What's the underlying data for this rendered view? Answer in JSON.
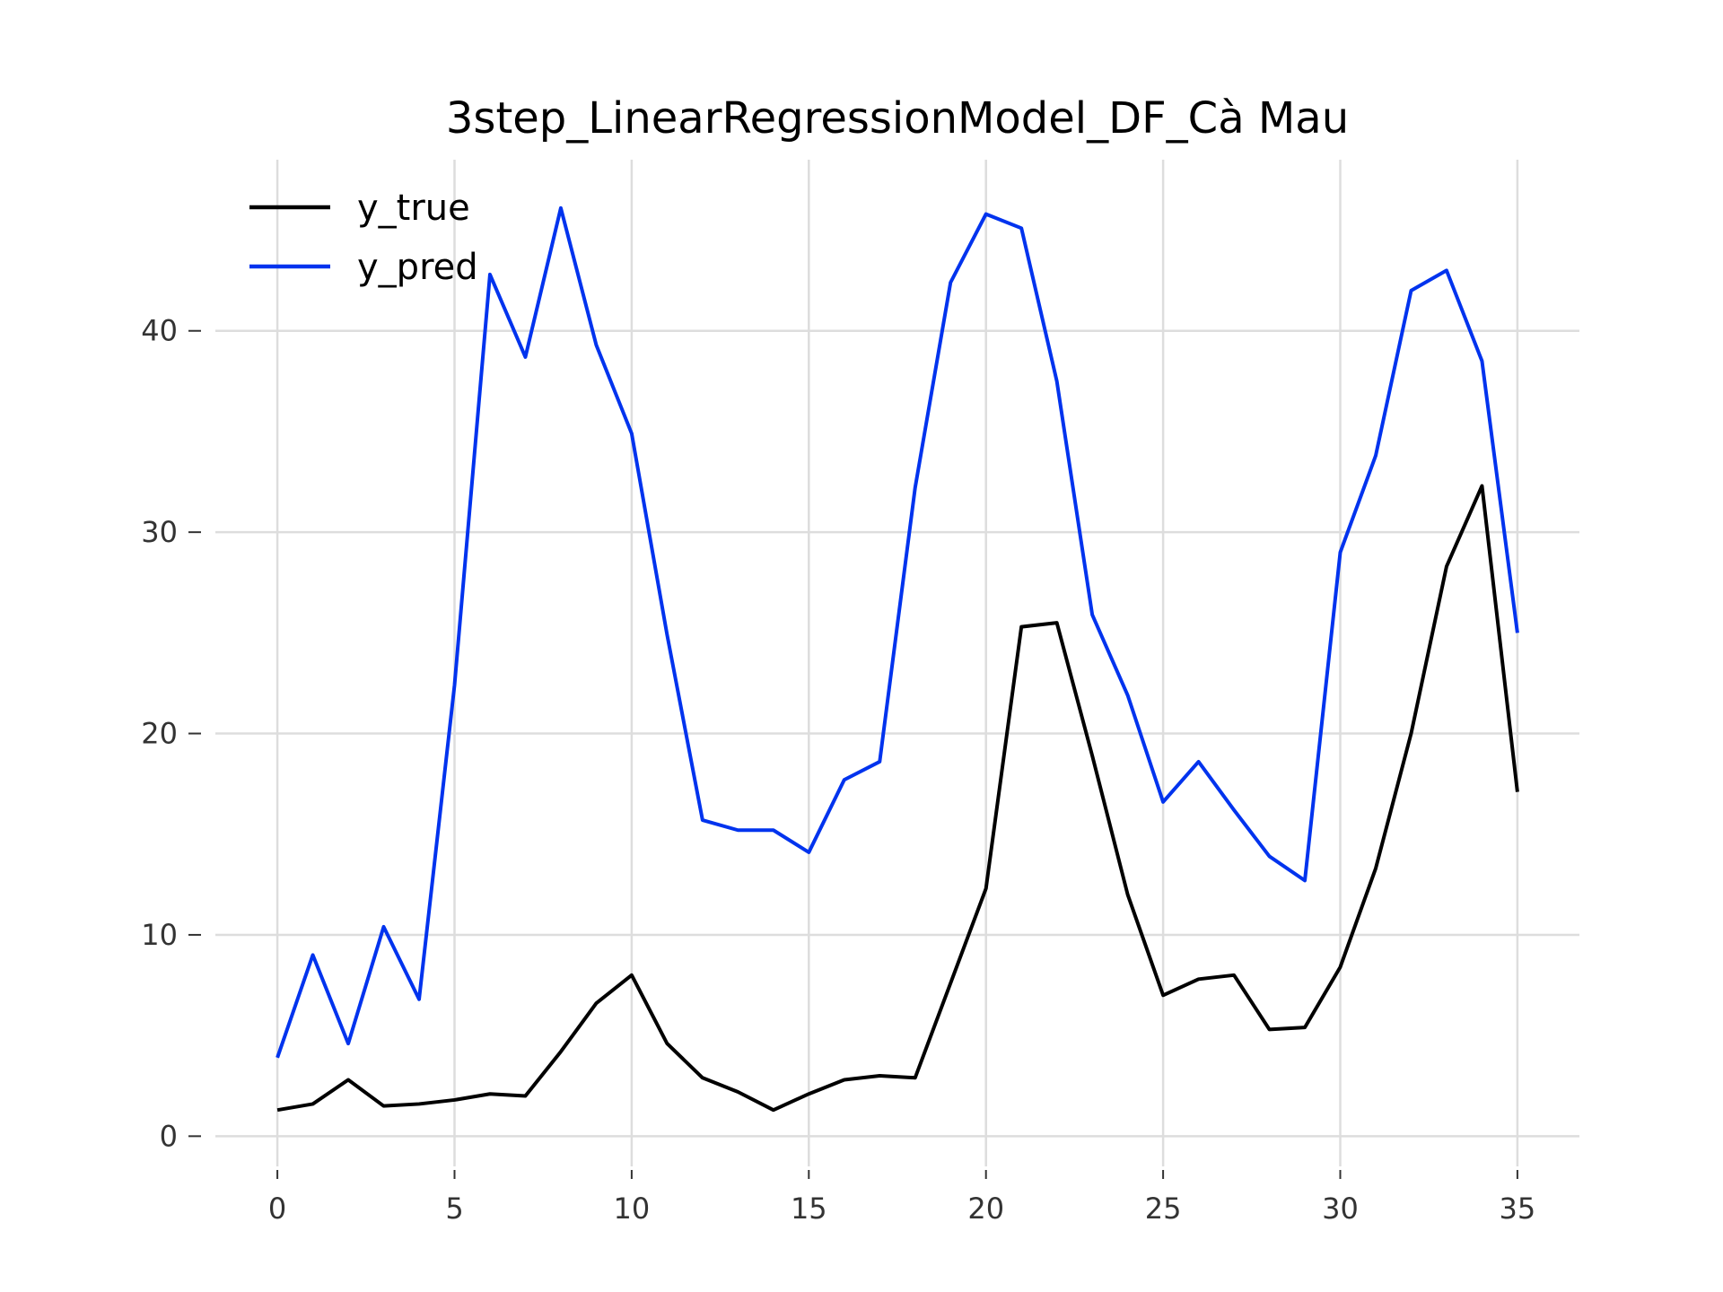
{
  "chart_data": {
    "type": "line",
    "title": "3step_LinearRegressionModel_DF_Cà Mau",
    "xlabel": "",
    "ylabel": "",
    "xlim": [
      -1.75,
      36.75
    ],
    "ylim": [
      -1.5,
      48.5
    ],
    "xticks": [
      0,
      5,
      10,
      15,
      20,
      25,
      30,
      35
    ],
    "yticks": [
      0,
      10,
      20,
      30,
      40
    ],
    "grid": true,
    "legend_position": "top-left",
    "x": [
      0,
      1,
      2,
      3,
      4,
      5,
      6,
      7,
      8,
      9,
      10,
      11,
      12,
      13,
      14,
      15,
      16,
      17,
      18,
      19,
      20,
      21,
      22,
      23,
      24,
      25,
      26,
      27,
      28,
      29,
      30,
      31,
      32,
      33,
      34,
      35
    ],
    "series": [
      {
        "name": "y_true",
        "color": "#000000",
        "values": [
          1.3,
          1.6,
          2.8,
          1.5,
          1.6,
          1.8,
          2.1,
          2.0,
          4.2,
          6.6,
          8.0,
          4.6,
          2.9,
          2.2,
          1.3,
          2.1,
          2.8,
          3.0,
          2.9,
          7.6,
          12.3,
          25.3,
          25.5,
          18.9,
          12.0,
          7.0,
          7.8,
          8.0,
          5.3,
          5.4,
          8.4,
          13.3,
          20.0,
          28.3,
          32.3,
          17.1
        ]
      },
      {
        "name": "y_pred",
        "color": "#0033ee",
        "values": [
          3.9,
          9.0,
          4.6,
          10.4,
          6.8,
          22.4,
          42.8,
          38.7,
          46.1,
          39.3,
          34.9,
          24.9,
          15.7,
          15.2,
          15.2,
          14.1,
          17.7,
          18.6,
          32.2,
          42.4,
          45.8,
          45.1,
          37.5,
          25.9,
          21.9,
          16.6,
          18.6,
          16.2,
          13.9,
          12.7,
          29.0,
          33.8,
          42.0,
          43.0,
          38.5,
          25.0
        ]
      }
    ]
  }
}
